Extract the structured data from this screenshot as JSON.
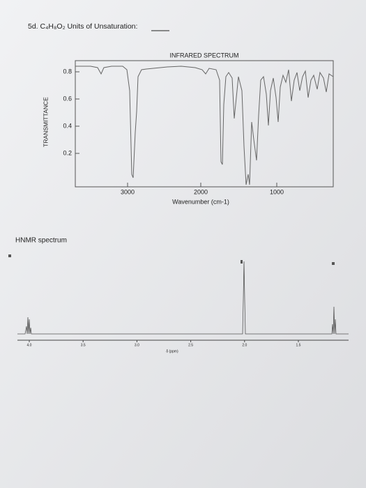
{
  "header": {
    "question": "5d. C₄H₈O₂ Units of Unsaturation:"
  },
  "ir": {
    "title": "INFRARED SPECTRUM",
    "y_label": "TRANSMITTANCE",
    "y_ticks": [
      "0.8",
      "0.6",
      "0.4",
      "0.2"
    ],
    "x_ticks": [
      "3000",
      "2000",
      "1000"
    ],
    "x_label": "Wavenumber (cm-1)"
  },
  "nmr": {
    "title": "HNMR spectrum",
    "x_ticks": [
      "4.0",
      "3.5",
      "3.0",
      "2.5",
      "2.0",
      "1.5"
    ],
    "x_label": "δ (ppm)"
  }
}
